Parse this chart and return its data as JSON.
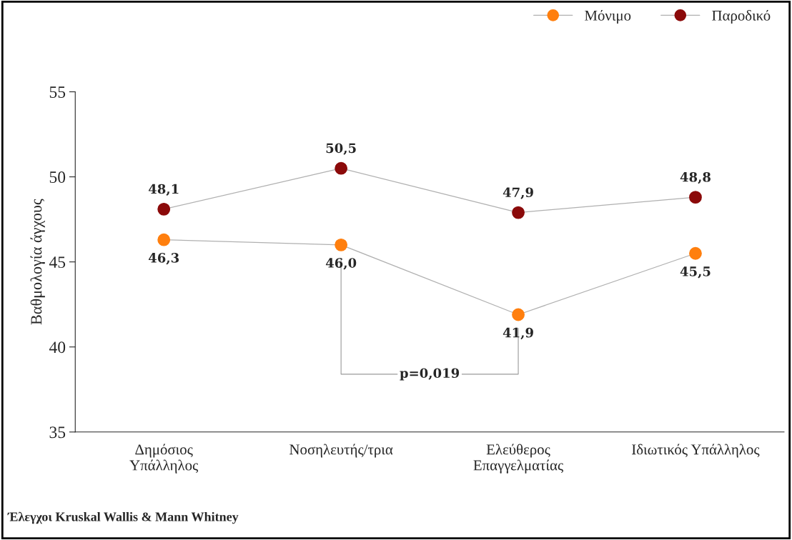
{
  "chart_data": {
    "type": "line",
    "ylabel": "Βαθμολογία άγχους",
    "categories": [
      "Δημόσιος\nΥπάλληλος",
      "Νοσηλευτής/τρια",
      "Ελεύθερος\nΕπαγγελματίας",
      "Ιδιωτικός Υπάλληλος"
    ],
    "series": [
      {
        "name": "Μόνιμο",
        "color": "#ff7f0e",
        "values": [
          46.3,
          46.0,
          41.9,
          45.5
        ],
        "value_labels": [
          "46,3",
          "46,0",
          "41,9",
          "45,5"
        ]
      },
      {
        "name": "Παροδικό",
        "color": "#8b0a0a",
        "values": [
          48.1,
          50.5,
          47.9,
          48.8
        ],
        "value_labels": [
          "48,1",
          "50,5",
          "47,9",
          "48,8"
        ]
      }
    ],
    "ylim": [
      35,
      55
    ],
    "yticks": [
      35,
      40,
      45,
      50,
      55
    ],
    "grid": false,
    "legend": "top right",
    "marker": "circle",
    "line_style": "solid",
    "annotations": [
      "p=0,019",
      "Έλεγχοι Kruskal Wallis & Mann Whitney"
    ]
  }
}
